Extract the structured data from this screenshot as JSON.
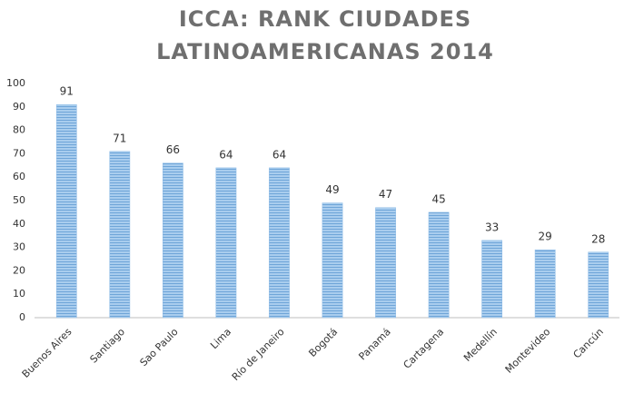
{
  "chart_data": {
    "type": "bar",
    "title": [
      "ICCA: RANK CIUDADES",
      "LATINOAMERICANAS 2014"
    ],
    "categories": [
      "Buenos Aires",
      "Santiago",
      "Sao Paulo",
      "Lima",
      "Río de Janeiro",
      "Bogotá",
      "Panamá",
      "Cartagena",
      "Medellín",
      "Montevideo",
      "Cancún"
    ],
    "values": [
      91,
      71,
      66,
      64,
      64,
      49,
      47,
      45,
      33,
      29,
      28
    ],
    "color": "#8dbbe6",
    "ylim": [
      0,
      100
    ],
    "yticks": [
      0,
      10,
      20,
      30,
      40,
      50,
      60,
      70,
      80,
      90,
      100
    ],
    "grid": false
  }
}
